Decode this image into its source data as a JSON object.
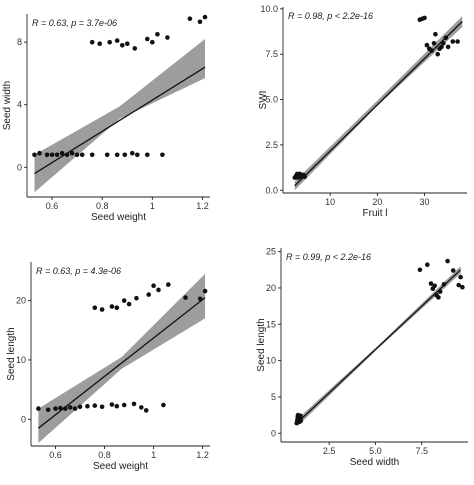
{
  "chart_data": [
    {
      "type": "scatter",
      "xlabel": "Seed weight",
      "ylabel": "Seed  width",
      "annotation": "R = 0.63, p = 3.7e-06",
      "xlim": [
        0.5,
        1.23
      ],
      "ylim": [
        -1.9,
        9.8
      ],
      "xticks": [
        0.6,
        0.8,
        1.0,
        1.2
      ],
      "yticks": [
        0,
        4,
        8
      ],
      "regression": {
        "x0": 0.53,
        "y0": -0.4,
        "x1": 1.21,
        "y1": 6.4
      },
      "band": {
        "x": [
          0.53,
          0.87,
          1.21
        ],
        "lower": [
          -1.6,
          3.1,
          5.7
        ],
        "upper": [
          0.8,
          3.9,
          8.2
        ]
      },
      "points": [
        [
          0.53,
          0.8
        ],
        [
          0.55,
          0.9
        ],
        [
          0.58,
          0.8
        ],
        [
          0.6,
          0.8
        ],
        [
          0.62,
          0.8
        ],
        [
          0.64,
          0.9
        ],
        [
          0.66,
          0.8
        ],
        [
          0.68,
          0.9
        ],
        [
          0.7,
          0.8
        ],
        [
          0.72,
          0.8
        ],
        [
          0.76,
          0.8
        ],
        [
          0.82,
          0.8
        ],
        [
          0.86,
          0.8
        ],
        [
          0.89,
          0.8
        ],
        [
          0.92,
          0.9
        ],
        [
          0.94,
          0.8
        ],
        [
          0.98,
          0.8
        ],
        [
          1.04,
          0.8
        ],
        [
          0.76,
          8.0
        ],
        [
          0.79,
          7.9
        ],
        [
          0.83,
          8.0
        ],
        [
          0.86,
          8.1
        ],
        [
          0.88,
          7.8
        ],
        [
          0.9,
          7.9
        ],
        [
          0.93,
          7.6
        ],
        [
          0.98,
          8.2
        ],
        [
          1.0,
          8.0
        ],
        [
          1.02,
          8.5
        ],
        [
          1.06,
          8.3
        ],
        [
          1.15,
          9.5
        ],
        [
          1.19,
          9.3
        ],
        [
          1.21,
          9.6
        ]
      ]
    },
    {
      "type": "scatter",
      "xlabel": "Fruit l",
      "ylabel": "SWI",
      "annotation": "R = 0.98, p < 2.2e-16",
      "xlim": [
        0,
        39
      ],
      "ylim": [
        -0.15,
        10.1
      ],
      "xticks": [
        10,
        20,
        30
      ],
      "yticks": [
        0.0,
        2.5,
        5.0,
        7.5,
        10.0
      ],
      "ytick_labels": [
        "0.0",
        "2.5",
        "5.0",
        "7.5",
        "10.0"
      ],
      "regression": {
        "x0": 2.5,
        "y0": 0.25,
        "x1": 38,
        "y1": 9.3
      },
      "band": {
        "x": [
          2.5,
          20,
          38
        ],
        "lower": [
          0.0,
          4.65,
          9.0
        ],
        "upper": [
          0.5,
          4.95,
          9.6
        ]
      },
      "points": [
        [
          2.5,
          0.7
        ],
        [
          2.8,
          0.8
        ],
        [
          3.0,
          0.9
        ],
        [
          3.2,
          0.7
        ],
        [
          3.4,
          0.8
        ],
        [
          3.6,
          0.9
        ],
        [
          3.8,
          0.75
        ],
        [
          4.0,
          0.8
        ],
        [
          4.3,
          0.85
        ],
        [
          4.6,
          0.75
        ],
        [
          29.0,
          9.4
        ],
        [
          29.5,
          9.45
        ],
        [
          30.0,
          9.5
        ],
        [
          30.5,
          8.0
        ],
        [
          31.0,
          7.8
        ],
        [
          31.5,
          7.7
        ],
        [
          32.0,
          8.1
        ],
        [
          32.3,
          8.6
        ],
        [
          32.8,
          7.5
        ],
        [
          33.2,
          7.8
        ],
        [
          33.6,
          7.9
        ],
        [
          34.0,
          8.1
        ],
        [
          34.5,
          8.4
        ],
        [
          35.0,
          7.9
        ],
        [
          36.0,
          8.2
        ],
        [
          37.0,
          8.2
        ]
      ]
    },
    {
      "type": "scatter",
      "xlabel": "Seed weight",
      "ylabel": "Seed  length",
      "annotation": "R = 0.63, p = 4.3e-06",
      "xlim": [
        0.5,
        1.23
      ],
      "ylim": [
        -4.5,
        26.5
      ],
      "xticks": [
        0.6,
        0.8,
        1.0,
        1.2
      ],
      "yticks": [
        0,
        10,
        20
      ],
      "regression": {
        "x0": 0.53,
        "y0": -1.5,
        "x1": 1.21,
        "y1": 20.5
      },
      "band": {
        "x": [
          0.53,
          0.87,
          1.21
        ],
        "lower": [
          -4.0,
          8.5,
          17.0
        ],
        "upper": [
          1.8,
          10.5,
          24.5
        ]
      },
      "points": [
        [
          0.53,
          1.8
        ],
        [
          0.57,
          1.6
        ],
        [
          0.6,
          1.8
        ],
        [
          0.62,
          1.9
        ],
        [
          0.64,
          1.8
        ],
        [
          0.66,
          2.0
        ],
        [
          0.68,
          1.8
        ],
        [
          0.7,
          2.1
        ],
        [
          0.73,
          2.2
        ],
        [
          0.76,
          2.3
        ],
        [
          0.79,
          2.1
        ],
        [
          0.83,
          2.5
        ],
        [
          0.85,
          2.2
        ],
        [
          0.88,
          2.4
        ],
        [
          0.92,
          2.6
        ],
        [
          0.95,
          2.0
        ],
        [
          0.97,
          1.5
        ],
        [
          1.04,
          2.4
        ],
        [
          0.76,
          18.8
        ],
        [
          0.79,
          18.5
        ],
        [
          0.83,
          19.0
        ],
        [
          0.85,
          18.8
        ],
        [
          0.88,
          20.0
        ],
        [
          0.9,
          19.4
        ],
        [
          0.93,
          20.4
        ],
        [
          0.98,
          21.0
        ],
        [
          1.0,
          22.5
        ],
        [
          1.02,
          21.8
        ],
        [
          1.06,
          22.7
        ],
        [
          1.13,
          20.5
        ],
        [
          1.19,
          20.3
        ],
        [
          1.21,
          21.6
        ]
      ]
    },
    {
      "type": "scatter",
      "xlabel": "Seed width",
      "ylabel": "Seed length",
      "annotation": "R = 0.99, p < 2.2e-16",
      "xlim": [
        -0.1,
        10.0
      ],
      "ylim": [
        -1.2,
        25.5
      ],
      "xticks": [
        2.5,
        5.0,
        7.5
      ],
      "xtick_labels": [
        "2.5",
        "5.0",
        "7.5"
      ],
      "yticks": [
        0,
        5,
        10,
        15,
        20,
        25
      ],
      "regression": {
        "x0": 0.8,
        "y0": 1.5,
        "x1": 9.6,
        "y1": 22.5
      },
      "band": {
        "x": [
          0.8,
          5.2,
          9.6
        ],
        "lower": [
          1.0,
          11.8,
          22.0
        ],
        "upper": [
          2.0,
          12.2,
          23.0
        ]
      },
      "points": [
        [
          0.75,
          1.4
        ],
        [
          0.78,
          1.8
        ],
        [
          0.8,
          2.2
        ],
        [
          0.82,
          2.5
        ],
        [
          0.85,
          1.9
        ],
        [
          0.88,
          2.3
        ],
        [
          0.9,
          1.6
        ],
        [
          0.92,
          2.0
        ],
        [
          0.95,
          2.4
        ],
        [
          0.97,
          1.7
        ],
        [
          7.4,
          22.5
        ],
        [
          7.8,
          23.2
        ],
        [
          8.0,
          20.6
        ],
        [
          8.1,
          19.9
        ],
        [
          8.2,
          20.3
        ],
        [
          8.3,
          19.0
        ],
        [
          8.4,
          18.7
        ],
        [
          8.5,
          19.5
        ],
        [
          8.7,
          20.5
        ],
        [
          8.9,
          23.7
        ],
        [
          9.2,
          22.4
        ],
        [
          9.5,
          20.4
        ],
        [
          9.6,
          21.5
        ],
        [
          9.7,
          20.1
        ]
      ]
    }
  ]
}
